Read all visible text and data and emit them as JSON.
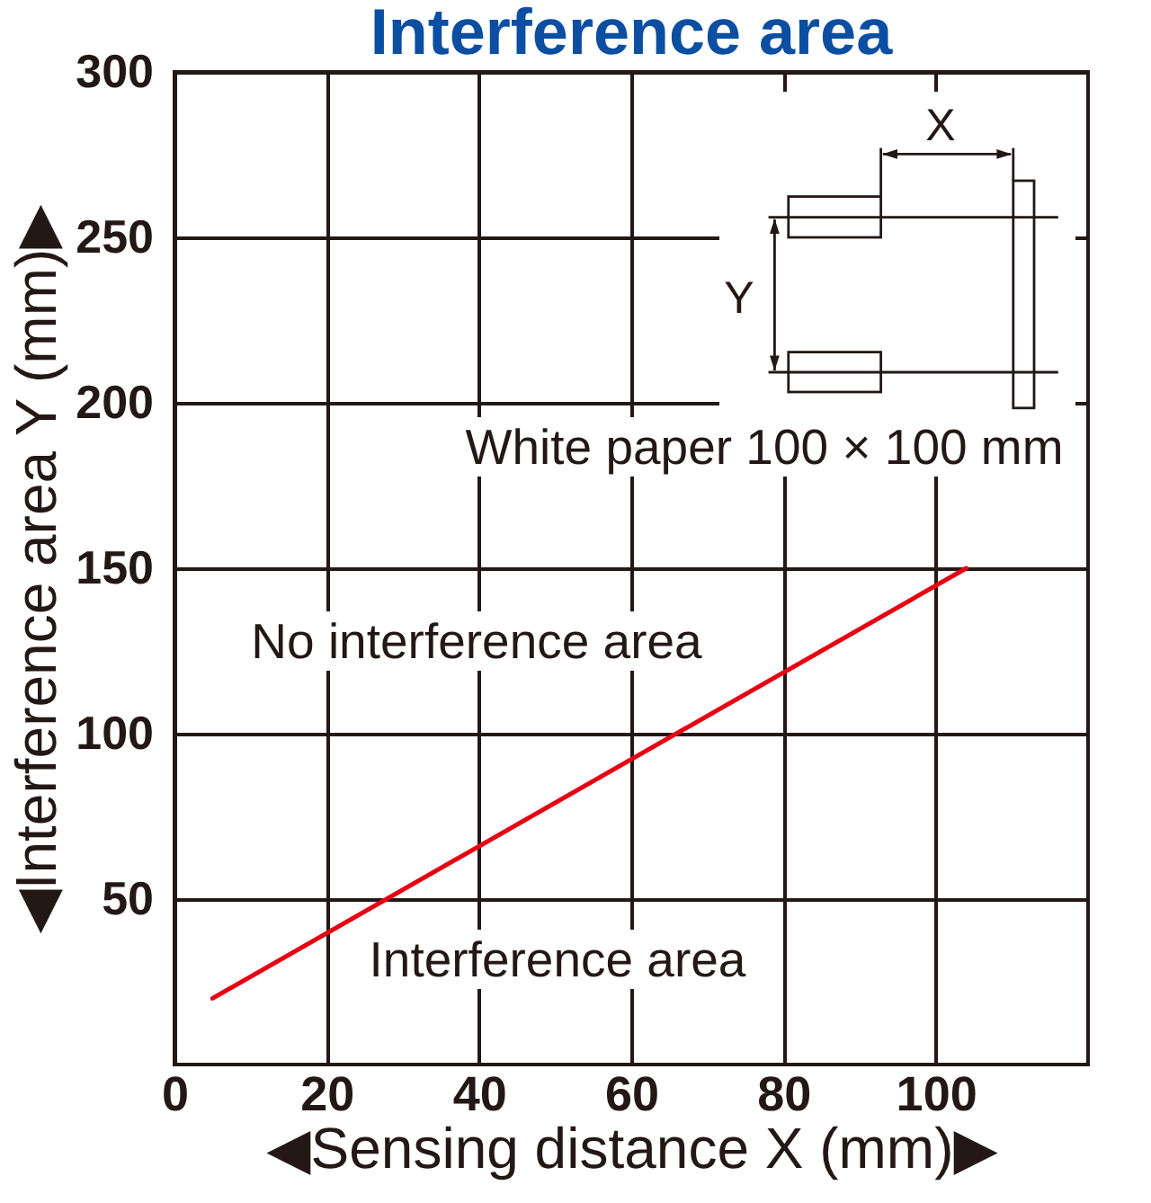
{
  "chart_data": {
    "type": "line",
    "title": "Interference area",
    "xlabel": "◀Sensing distance X (mm)▶",
    "ylabel": "◀Interference area Y (mm)▶",
    "x": [
      5,
      104
    ],
    "series": [
      {
        "color": "#e60012",
        "values": [
          20,
          150
        ]
      }
    ],
    "xlim": [
      0,
      120
    ],
    "ylim": [
      0,
      300
    ],
    "xticks": [
      0,
      20,
      40,
      60,
      80,
      100
    ],
    "yticks": [
      50,
      100,
      150,
      200,
      250,
      300
    ],
    "grid": true,
    "marker": "none",
    "line_style": "solid",
    "annotations": [
      "White paper 100 × 100 mm",
      "No interference area",
      "Interference area",
      "X",
      "Y"
    ]
  }
}
